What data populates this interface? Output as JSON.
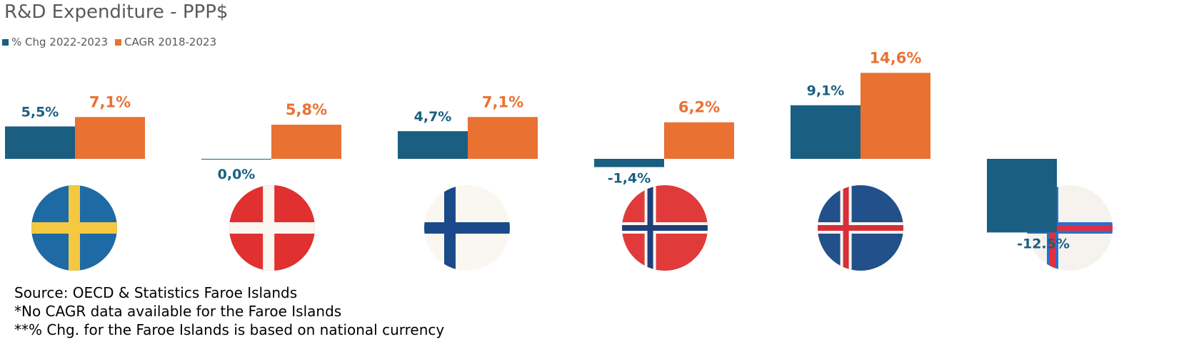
{
  "colors": {
    "chg": "#1a5f82",
    "cagr": "#e97132",
    "text_grey": "#595959"
  },
  "chart_data": {
    "type": "bar",
    "title": "R&D Expenditure - PPP$",
    "legend_position": "top-left",
    "grid": false,
    "ylim": [
      -12.5,
      14.6
    ],
    "series": [
      {
        "name": "% Chg 2022-2023",
        "values": [
          5.5,
          0.0,
          4.7,
          -1.4,
          9.1,
          -12.5
        ],
        "labels": [
          "5,5%",
          "0,0%",
          "4,7%",
          "-1,4%",
          "9,1%",
          "-12.5%"
        ]
      },
      {
        "name": "CAGR 2018-2023",
        "values": [
          7.1,
          5.8,
          7.1,
          6.2,
          14.6,
          null
        ],
        "labels": [
          "7,1%",
          "5,8%",
          "7,1%",
          "6,2%",
          "14,6%",
          ""
        ]
      }
    ],
    "categories_icons": [
      "sweden-flag-icon",
      "denmark-flag-icon",
      "finland-flag-icon",
      "norway-flag-icon",
      "iceland-flag-icon",
      "faroe-islands-flag-icon"
    ]
  },
  "notes": {
    "line1": "Source: OECD & Statistics Faroe Islands",
    "line2": "*No CAGR data available for the Faroe Islands",
    "line3": "**% Chg. for the Faroe Islands is based on national currency"
  }
}
